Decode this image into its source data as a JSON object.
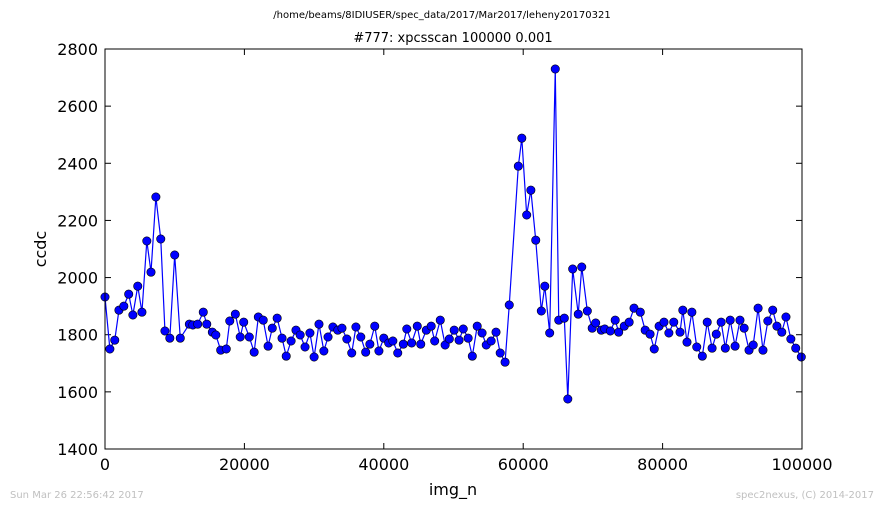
{
  "chart_data": {
    "type": "line",
    "title": "/home/beams/8IDIUSER/spec_data/2017/Mar2017/leheny20170321",
    "subtitle": "#777: xpcsscan 100000 0.001",
    "xlabel": "img_n",
    "ylabel": "ccdc",
    "annotations": [
      "Sun Mar 26 22:56:42 2017",
      "spec2nexus, (C) 2014-2017"
    ],
    "xlim": [
      0,
      100000
    ],
    "ylim": [
      1400,
      2800
    ],
    "xticks": [
      0,
      20000,
      40000,
      60000,
      80000,
      100000
    ],
    "yticks": [
      1400,
      1600,
      1800,
      2000,
      2200,
      2400,
      2600,
      2800
    ],
    "grid": false,
    "x": [
      0,
      700,
      1400,
      2000,
      2700,
      3400,
      4000,
      4700,
      5300,
      6000,
      6600,
      7300,
      8000,
      8600,
      9300,
      10000,
      10800,
      12100,
      12600,
      13300,
      14100,
      14600,
      15400,
      15900,
      16600,
      17400,
      17900,
      18700,
      19400,
      19900,
      20700,
      21400,
      22000,
      22700,
      23400,
      24000,
      24700,
      25400,
      26000,
      26700,
      27400,
      28000,
      28700,
      29400,
      30000,
      30700,
      31400,
      32000,
      32700,
      33400,
      34000,
      34700,
      35400,
      36000,
      36700,
      37400,
      38000,
      38700,
      39300,
      40000,
      40700,
      41300,
      42000,
      42800,
      43300,
      44000,
      44800,
      45300,
      46100,
      46800,
      47300,
      48100,
      48800,
      49400,
      50100,
      50800,
      51400,
      52100,
      52700,
      53400,
      54100,
      54700,
      55400,
      56100,
      56700,
      57400,
      58000,
      59300,
      59800,
      60500,
      61100,
      61800,
      62600,
      63100,
      63800,
      64600,
      65100,
      65900,
      66400,
      67100,
      67900,
      68400,
      69200,
      69900,
      70400,
      71200,
      71700,
      72500,
      73200,
      73700,
      74500,
      75200,
      75900,
      76800,
      77500,
      78200,
      78800,
      79500,
      80200,
      80900,
      81600,
      82500,
      82900,
      83500,
      84200,
      84900,
      85700,
      86400,
      87100,
      87700,
      88400,
      89000,
      89700,
      90400,
      91100,
      91700,
      92400,
      93000,
      93700,
      94400,
      95100,
      95800,
      96400,
      97100,
      97700,
      98400,
      99100,
      99900
    ],
    "series": [
      {
        "color": "#0000ff",
        "values": [
          1932,
          1750,
          1781,
          1886,
          1900,
          1942,
          1869,
          1970,
          1879,
          2128,
          2019,
          2282,
          2135,
          1813,
          1788,
          2079,
          1788,
          1837,
          1834,
          1837,
          1879,
          1837,
          1809,
          1799,
          1746,
          1750,
          1848,
          1872,
          1792,
          1844,
          1792,
          1739,
          1862,
          1851,
          1760,
          1823,
          1858,
          1788,
          1725,
          1778,
          1816,
          1799,
          1757,
          1806,
          1722,
          1837,
          1743,
          1792,
          1827,
          1816,
          1823,
          1785,
          1736,
          1827,
          1792,
          1739,
          1767,
          1830,
          1743,
          1788,
          1771,
          1778,
          1736,
          1767,
          1820,
          1771,
          1830,
          1767,
          1816,
          1830,
          1778,
          1851,
          1764,
          1785,
          1816,
          1781,
          1820,
          1788,
          1725,
          1830,
          1806,
          1764,
          1778,
          1809,
          1736,
          1704,
          1904,
          2390,
          2488,
          2219,
          2306,
          2131,
          1883,
          1970,
          1806,
          2730,
          1851,
          1858,
          1575,
          2030,
          1872,
          2037,
          1883,
          1823,
          1841,
          1816,
          1820,
          1813,
          1851,
          1809,
          1830,
          1844,
          1893,
          1879,
          1816,
          1802,
          1750,
          1830,
          1844,
          1806,
          1844,
          1809,
          1886,
          1774,
          1879,
          1757,
          1725,
          1844,
          1753,
          1802,
          1844,
          1753,
          1851,
          1760,
          1851,
          1823,
          1746,
          1764,
          1893,
          1746,
          1848,
          1886,
          1830,
          1809,
          1862,
          1785,
          1753,
          1722
        ]
      }
    ]
  }
}
